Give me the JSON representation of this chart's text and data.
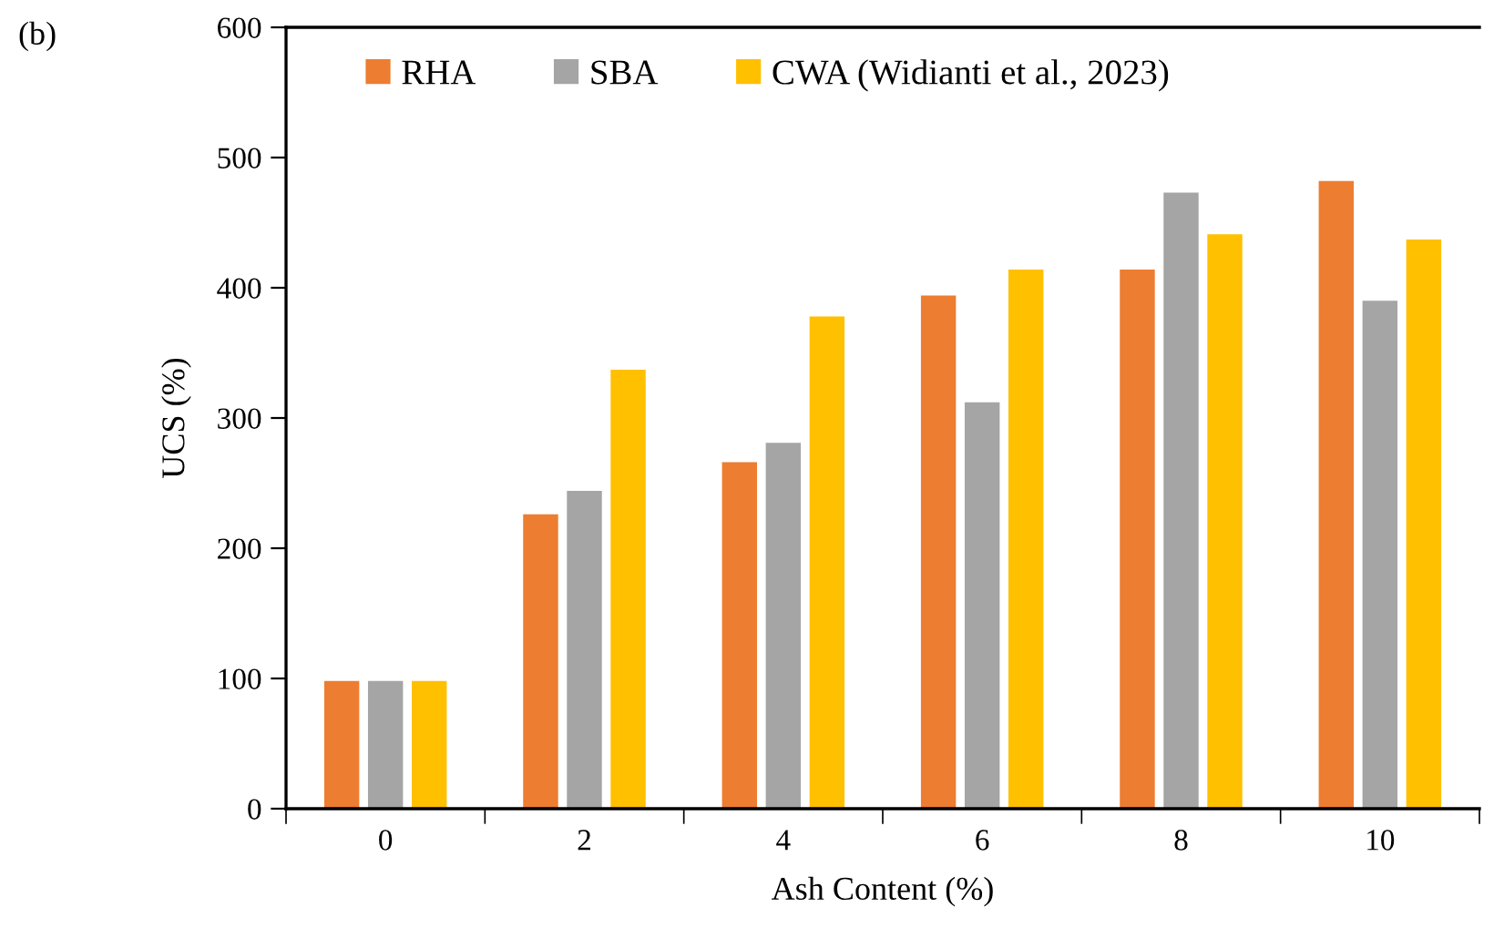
{
  "chart_data": {
    "type": "bar",
    "xlabel": "Ash Content (%)",
    "ylabel": "UCS (%)",
    "categories": [
      "0",
      "2",
      "4",
      "6",
      "8",
      "10"
    ],
    "series": [
      {
        "name": "RHA",
        "color": "#ed7d31",
        "values": [
          98,
          226,
          266,
          394,
          414,
          482
        ]
      },
      {
        "name": "SBA",
        "color": "#a5a5a5",
        "values": [
          98,
          244,
          281,
          312,
          473,
          390
        ]
      },
      {
        "name": "CWA (Widianti et al., 2023)",
        "color": "#ffc000",
        "values": [
          98,
          337,
          378,
          414,
          441,
          437
        ]
      }
    ],
    "ylim": [
      0,
      600
    ],
    "yticks": [
      0,
      100,
      200,
      300,
      400,
      500,
      600
    ],
    "grid": false,
    "legend": "top left",
    "annotations": [
      "(b)"
    ]
  }
}
